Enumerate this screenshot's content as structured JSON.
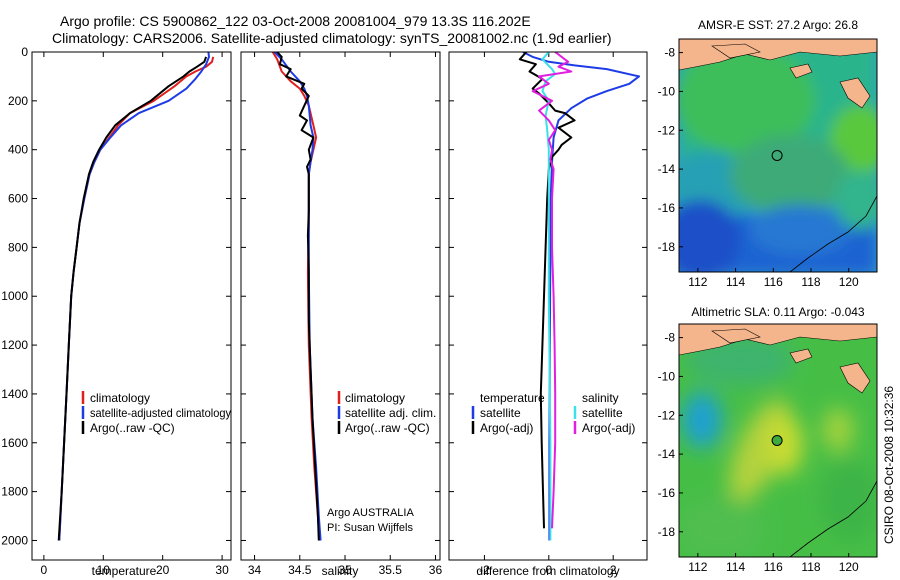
{
  "title_line1": "Argo profile: CS 5900862_122 03-Oct-2008 20081004_979 13.3S 116.202E",
  "title_line2": "Climatology: CARS2006. Satellite-adjusted climatology: synTS_20081002.nc (1.9d earlier)",
  "footer_stamp": "CSIRO 08-Oct-2008 10:32:36",
  "colors": {
    "clim": "#e0201e",
    "sat": "#1e3ce6",
    "argo": "#000000",
    "sal_sat": "#3ce0e8",
    "sal_argo": "#e020e0",
    "land": "#f4b58c",
    "ocean_cool": "#1e64d2",
    "ocean_mid": "#32b45a",
    "ocean_warm": "#d2dc32"
  },
  "chart_data": [
    {
      "type": "line",
      "name": "temperature",
      "xlabel": "temperature",
      "ylabel": "",
      "xlim": [
        -2,
        31.5
      ],
      "ylim": [
        2080,
        0
      ],
      "xticks": [
        "0",
        "10",
        "20",
        "30"
      ],
      "yticks": [
        "0",
        "200",
        "400",
        "600",
        "800",
        "1000",
        "1200",
        "1400",
        "1600",
        "1800",
        "2000"
      ],
      "legend": [
        "climatology",
        "satellite-adjusted climatology",
        "Argo(..raw -QC)"
      ],
      "series": [
        {
          "name": "climatology",
          "color_key": "clim",
          "points": [
            [
              28.5,
              20
            ],
            [
              28.3,
              40
            ],
            [
              27.3,
              60
            ],
            [
              25.5,
              80
            ],
            [
              24,
              100
            ],
            [
              22,
              140
            ],
            [
              18.5,
              200
            ],
            [
              14.5,
              250
            ],
            [
              12.5,
              300
            ],
            [
              11,
              350
            ],
            [
              9.5,
              400
            ],
            [
              8.5,
              450
            ],
            [
              7.7,
              500
            ],
            [
              6.8,
              600
            ],
            [
              6,
              700
            ],
            [
              5.5,
              800
            ],
            [
              5,
              900
            ],
            [
              4.6,
              1000
            ],
            [
              4.2,
              1200
            ],
            [
              3.8,
              1400
            ],
            [
              3.4,
              1600
            ],
            [
              3,
              1800
            ],
            [
              2.6,
              2000
            ]
          ]
        },
        {
          "name": "satellite-adjusted climatology",
          "color_key": "sat",
          "points": [
            [
              27.7,
              0
            ],
            [
              27.8,
              20
            ],
            [
              27.3,
              50
            ],
            [
              26.5,
              80
            ],
            [
              25.5,
              110
            ],
            [
              24,
              150
            ],
            [
              21,
              200
            ],
            [
              16,
              250
            ],
            [
              13,
              300
            ],
            [
              11.2,
              350
            ],
            [
              9.5,
              400
            ],
            [
              8.5,
              450
            ],
            [
              7.7,
              500
            ],
            [
              6.8,
              600
            ],
            [
              6,
              700
            ],
            [
              5.5,
              800
            ],
            [
              5,
              900
            ],
            [
              4.6,
              1000
            ],
            [
              4.2,
              1200
            ],
            [
              3.8,
              1400
            ],
            [
              3.4,
              1600
            ],
            [
              3,
              1800
            ],
            [
              2.6,
              2000
            ]
          ]
        },
        {
          "name": "Argo(..raw -QC)",
          "color_key": "argo",
          "points": [
            [
              27.3,
              20
            ],
            [
              27.0,
              40
            ],
            [
              25.8,
              60
            ],
            [
              24.5,
              80
            ],
            [
              23.5,
              100
            ],
            [
              21,
              140
            ],
            [
              18,
              200
            ],
            [
              14.5,
              250
            ],
            [
              12,
              300
            ],
            [
              10.5,
              350
            ],
            [
              9.3,
              400
            ],
            [
              8.3,
              450
            ],
            [
              7.6,
              500
            ],
            [
              6.7,
              600
            ],
            [
              6,
              700
            ],
            [
              5.5,
              800
            ],
            [
              5,
              900
            ],
            [
              4.6,
              1000
            ],
            [
              4.2,
              1200
            ],
            [
              3.8,
              1400
            ],
            [
              3.4,
              1600
            ],
            [
              3,
              1800
            ],
            [
              2.5,
              2000
            ]
          ]
        }
      ]
    },
    {
      "type": "line",
      "name": "salinity",
      "xlabel": "salinity",
      "xlim": [
        33.85,
        36.05
      ],
      "ylim": [
        2080,
        0
      ],
      "xticks": [
        "34",
        "34.5",
        "35",
        "35.5",
        "36"
      ],
      "legend": [
        "climatology",
        "satellite adj. clim.",
        "Argo(..raw -QC)"
      ],
      "annotations": [
        "Argo AUSTRALIA",
        "PI: Susan Wijffels"
      ],
      "series": [
        {
          "name": "climatology",
          "color_key": "clim",
          "points": [
            [
              34.2,
              0
            ],
            [
              34.25,
              30
            ],
            [
              34.3,
              80
            ],
            [
              34.4,
              120
            ],
            [
              34.5,
              150
            ],
            [
              34.55,
              180
            ],
            [
              34.6,
              220
            ],
            [
              34.65,
              300
            ],
            [
              34.68,
              350
            ],
            [
              34.65,
              400
            ],
            [
              34.62,
              450
            ],
            [
              34.6,
              500
            ],
            [
              34.6,
              700
            ],
            [
              34.59,
              900
            ],
            [
              34.6,
              1200
            ],
            [
              34.63,
              1500
            ],
            [
              34.66,
              1700
            ],
            [
              34.7,
              1900
            ],
            [
              34.72,
              2000
            ]
          ]
        },
        {
          "name": "satellite adj. clim.",
          "color_key": "sat",
          "points": [
            [
              34.22,
              0
            ],
            [
              34.3,
              30
            ],
            [
              34.4,
              80
            ],
            [
              34.5,
              120
            ],
            [
              34.55,
              150
            ],
            [
              34.58,
              180
            ],
            [
              34.6,
              220
            ],
            [
              34.62,
              300
            ],
            [
              34.65,
              350
            ],
            [
              34.64,
              400
            ],
            [
              34.62,
              450
            ],
            [
              34.6,
              500
            ],
            [
              34.6,
              700
            ],
            [
              34.6,
              900
            ],
            [
              34.61,
              1200
            ],
            [
              34.64,
              1500
            ],
            [
              34.68,
              1700
            ],
            [
              34.71,
              1900
            ],
            [
              34.73,
              2000
            ]
          ]
        },
        {
          "name": "Argo(..raw -QC)",
          "color_key": "argo",
          "points": [
            [
              34.25,
              0
            ],
            [
              34.3,
              20
            ],
            [
              34.28,
              50
            ],
            [
              34.4,
              70
            ],
            [
              34.35,
              100
            ],
            [
              34.55,
              130
            ],
            [
              34.52,
              150
            ],
            [
              34.6,
              180
            ],
            [
              34.55,
              220
            ],
            [
              34.5,
              260
            ],
            [
              34.58,
              280
            ],
            [
              34.52,
              320
            ],
            [
              34.65,
              350
            ],
            [
              34.6,
              400
            ],
            [
              34.62,
              440
            ],
            [
              34.58,
              470
            ],
            [
              34.6,
              500
            ],
            [
              34.6,
              650
            ],
            [
              34.59,
              750
            ],
            [
              34.6,
              900
            ],
            [
              34.6,
              1100
            ],
            [
              34.62,
              1300
            ],
            [
              34.64,
              1500
            ],
            [
              34.67,
              1700
            ],
            [
              34.7,
              1900
            ],
            [
              34.71,
              2000
            ]
          ]
        }
      ]
    },
    {
      "type": "line",
      "name": "difference",
      "xlabel": "difference from climatology",
      "xlim": [
        -3.1,
        3.05
      ],
      "ylim": [
        2080,
        0
      ],
      "xticks": [
        "-2",
        "0",
        "2"
      ],
      "legend_groups": [
        {
          "title": "temperature",
          "entries": [
            "satellite",
            "Argo(-adj)"
          ]
        },
        {
          "title": "salinity",
          "entries": [
            "satellite",
            "Argo(-adj)"
          ]
        }
      ],
      "series": [
        {
          "name": "temperature satellite",
          "color_key": "sat",
          "points": [
            [
              -0.8,
              0
            ],
            [
              -0.5,
              20
            ],
            [
              0,
              40
            ],
            [
              0.8,
              55
            ],
            [
              1.8,
              70
            ],
            [
              2.8,
              100
            ],
            [
              2.5,
              130
            ],
            [
              1.8,
              160
            ],
            [
              1.2,
              190
            ],
            [
              0.7,
              230
            ],
            [
              0.3,
              280
            ],
            [
              0.15,
              350
            ],
            [
              0.1,
              450
            ],
            [
              0.06,
              600
            ],
            [
              0.05,
              800
            ],
            [
              0.04,
              1000
            ],
            [
              0.03,
              1300
            ],
            [
              0.02,
              1600
            ],
            [
              0.02,
              1800
            ],
            [
              0.02,
              2000
            ]
          ]
        },
        {
          "name": "temperature Argo(-adj)",
          "color_key": "argo",
          "points": [
            [
              -0.7,
              0
            ],
            [
              -0.9,
              30
            ],
            [
              -0.4,
              50
            ],
            [
              -0.6,
              80
            ],
            [
              -0.2,
              110
            ],
            [
              -0.5,
              150
            ],
            [
              -0.3,
              170
            ],
            [
              0,
              210
            ],
            [
              0.2,
              240
            ],
            [
              0.5,
              250
            ],
            [
              0.8,
              280
            ],
            [
              0.3,
              310
            ],
            [
              0.5,
              330
            ],
            [
              0.7,
              350
            ],
            [
              0.4,
              380
            ],
            [
              0.3,
              400
            ],
            [
              0.1,
              430
            ],
            [
              0,
              480
            ],
            [
              -0.05,
              600
            ],
            [
              -0.1,
              800
            ],
            [
              -0.15,
              1000
            ],
            [
              -0.2,
              1200
            ],
            [
              -0.25,
              1400
            ],
            [
              -0.22,
              1600
            ],
            [
              -0.18,
              1800
            ],
            [
              -0.15,
              1950
            ]
          ]
        },
        {
          "name": "salinity satellite",
          "color_key": "sal_sat",
          "points": [
            [
              0,
              0
            ],
            [
              -0.2,
              30
            ],
            [
              0.1,
              70
            ],
            [
              0.2,
              90
            ],
            [
              -0.1,
              120
            ],
            [
              -0.2,
              160
            ],
            [
              0,
              200
            ],
            [
              -0.1,
              260
            ],
            [
              -0.05,
              320
            ],
            [
              0,
              400
            ],
            [
              0,
              600
            ],
            [
              0,
              800
            ],
            [
              0,
              1000
            ],
            [
              0.02,
              1200
            ],
            [
              0.03,
              1400
            ],
            [
              0.05,
              1600
            ],
            [
              0.05,
              1800
            ],
            [
              0.05,
              2000
            ]
          ]
        },
        {
          "name": "salinity Argo(-adj)",
          "color_key": "sal_argo",
          "points": [
            [
              0.2,
              0
            ],
            [
              0.6,
              40
            ],
            [
              0.3,
              60
            ],
            [
              0.7,
              80
            ],
            [
              -0.3,
              100
            ],
            [
              0,
              130
            ],
            [
              -0.5,
              160
            ],
            [
              0.1,
              200
            ],
            [
              -0.3,
              240
            ],
            [
              0,
              280
            ],
            [
              0.2,
              320
            ],
            [
              0,
              360
            ],
            [
              0.1,
              400
            ],
            [
              0.05,
              440
            ],
            [
              0.15,
              480
            ],
            [
              0.1,
              600
            ],
            [
              0.1,
              800
            ],
            [
              0.15,
              1000
            ],
            [
              0.18,
              1200
            ],
            [
              0.2,
              1400
            ],
            [
              0.2,
              1600
            ],
            [
              0.15,
              1800
            ],
            [
              0.1,
              1950
            ]
          ]
        }
      ]
    },
    {
      "type": "heatmap",
      "name": "sst_map",
      "title": "AMSR-E SST: 27.2  Argo: 26.8",
      "xlim": [
        111,
        121.5
      ],
      "ylim": [
        -19.3,
        -7.3
      ],
      "xticks": [
        "112",
        "114",
        "116",
        "118",
        "120"
      ],
      "yticks": [
        "-8",
        "-10",
        "-12",
        "-14",
        "-16",
        "-18"
      ],
      "marker": {
        "lon": 116.2,
        "lat": -13.3
      }
    },
    {
      "type": "heatmap",
      "name": "sla_map",
      "title": "Altimetric SLA: 0.11  Argo: -0.043",
      "xlim": [
        111,
        121.5
      ],
      "ylim": [
        -19.3,
        -7.3
      ],
      "xticks": [
        "112",
        "114",
        "116",
        "118",
        "120"
      ],
      "yticks": [
        "-8",
        "-10",
        "-12",
        "-14",
        "-16",
        "-18"
      ],
      "marker": {
        "lon": 116.2,
        "lat": -13.3
      }
    }
  ]
}
